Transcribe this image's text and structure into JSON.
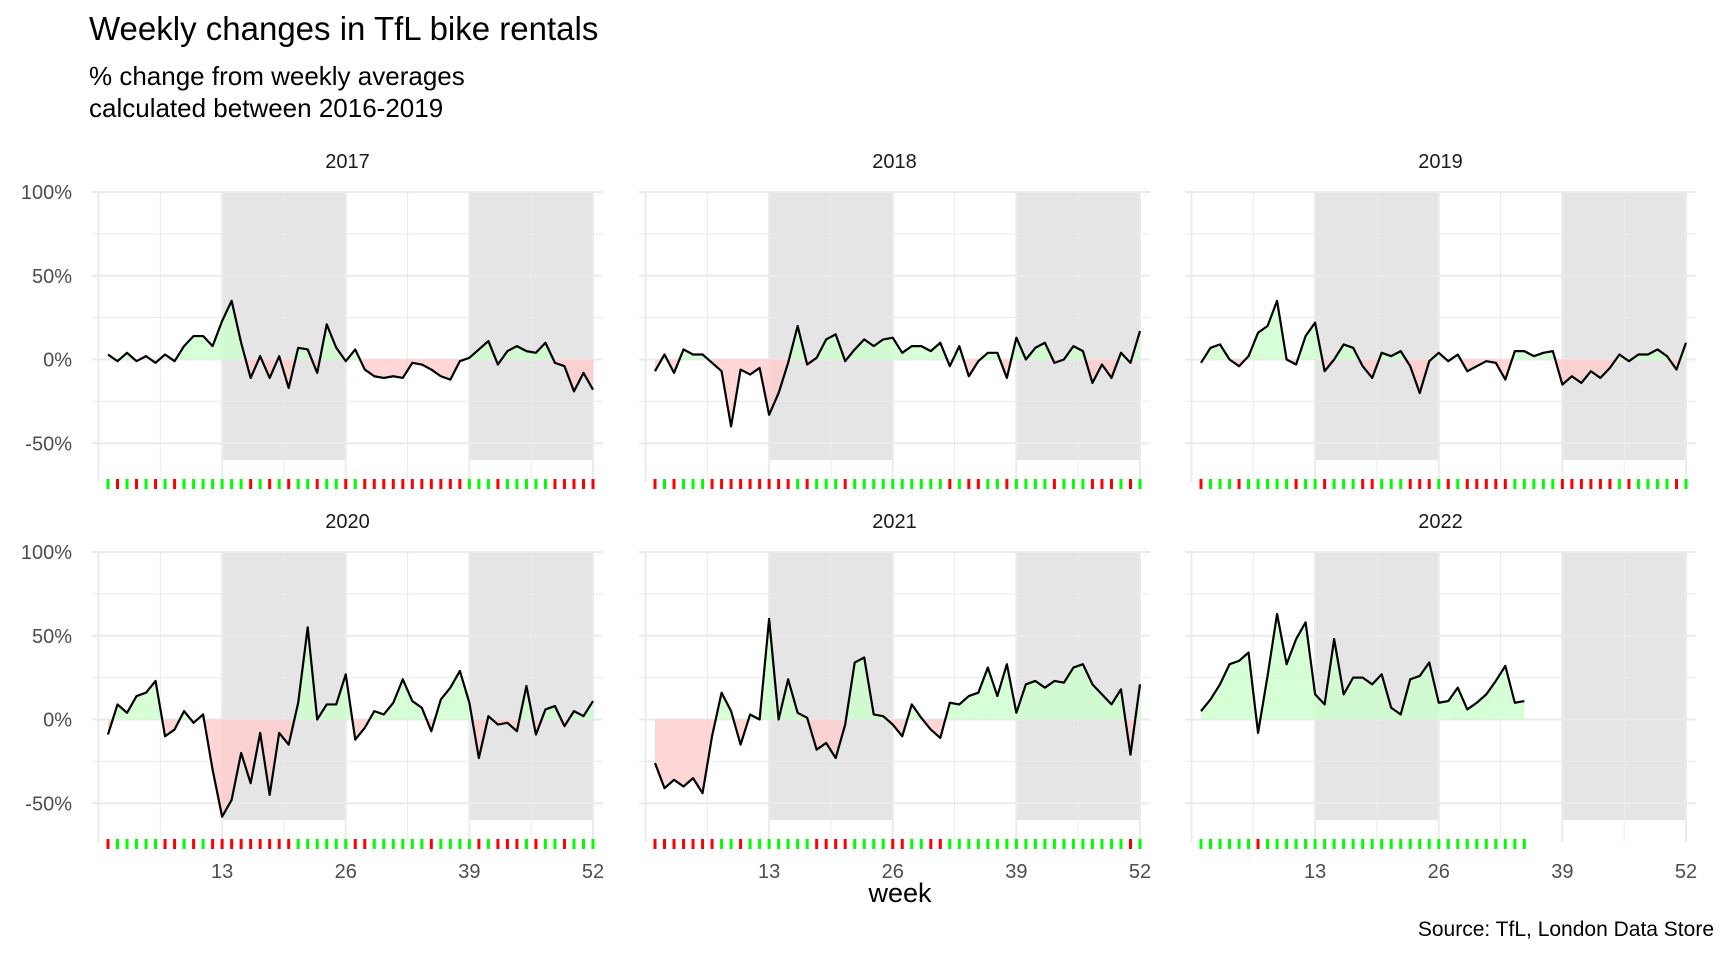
{
  "title": "Weekly changes in TfL bike rentals",
  "subtitle": "% change from weekly averages\ncalculated between 2016-2019",
  "caption": "Source: TfL, London Data Store",
  "colors": {
    "line": "#000000",
    "positive_fill": "#ccffcc",
    "negative_fill": "#ffcccc",
    "positive_tick": "#00ff00",
    "negative_tick": "#ff0000",
    "quarter_shade": "#e5e5e5",
    "grid": "#ebebeb"
  },
  "chart_data": {
    "type": "area",
    "xlabel": "week",
    "ylabel": "",
    "xlim": [
      1,
      52
    ],
    "ylim": [
      -60,
      100
    ],
    "x_ticks": [
      13,
      26,
      39,
      52
    ],
    "x_tick_labels": [
      "13",
      "26",
      "39",
      "52"
    ],
    "y_ticks": [
      -50,
      0,
      50,
      100
    ],
    "y_tick_labels": [
      "-50%",
      "0%",
      "50%",
      "100%"
    ],
    "shaded_week_ranges": [
      [
        13,
        26
      ],
      [
        39,
        52
      ]
    ],
    "grid": true,
    "facets": [
      {
        "name": "2017",
        "values": [
          3,
          -1,
          4,
          -1,
          2,
          -2,
          3,
          -1,
          8,
          14,
          14,
          8,
          23,
          35,
          10,
          -11,
          2,
          -11,
          2,
          -17,
          7,
          6,
          -8,
          21,
          7,
          -1,
          6,
          -6,
          -10,
          -11,
          -10,
          -11,
          -2,
          -3,
          -6,
          -10,
          -12,
          -1,
          1,
          6,
          11,
          -3,
          5,
          8,
          5,
          4,
          10,
          -2,
          -4,
          -19,
          -8,
          -18
        ]
      },
      {
        "name": "2018",
        "values": [
          -7,
          3,
          -8,
          6,
          3,
          3,
          -2,
          -7,
          -40,
          -6,
          -9,
          -5,
          -33,
          -20,
          -2,
          20,
          -3,
          1,
          12,
          15,
          -1,
          6,
          12,
          8,
          12,
          13,
          4,
          8,
          8,
          5,
          10,
          -4,
          8,
          -10,
          -1,
          4,
          4,
          -11,
          13,
          0,
          7,
          10,
          -2,
          0,
          8,
          5,
          -14,
          -3,
          -11,
          4,
          -2,
          17
        ]
      },
      {
        "name": "2019",
        "values": [
          -2,
          7,
          9,
          0,
          -4,
          2,
          16,
          20,
          35,
          0,
          -3,
          14,
          22,
          -7,
          0,
          9,
          7,
          -4,
          -11,
          4,
          2,
          5,
          -4,
          -20,
          -1,
          4,
          -1,
          3,
          -7,
          -4,
          -1,
          -2,
          -12,
          5,
          5,
          2,
          4,
          5,
          -15,
          -10,
          -14,
          -7,
          -11,
          -5,
          3,
          -1,
          3,
          3,
          6,
          2,
          -6,
          10
        ]
      },
      {
        "name": "2020",
        "values": [
          -9,
          9,
          4,
          14,
          16,
          23,
          -10,
          -6,
          5,
          -2,
          3,
          -30,
          -58,
          -48,
          -20,
          -38,
          -8,
          -45,
          -8,
          -15,
          10,
          55,
          0,
          9,
          9,
          27,
          -12,
          -5,
          5,
          3,
          10,
          24,
          11,
          7,
          -7,
          12,
          19,
          29,
          10,
          -23,
          2,
          -3,
          -2,
          -7,
          20,
          -9,
          6,
          8,
          -4,
          5,
          2,
          11
        ]
      },
      {
        "name": "2021",
        "values": [
          -26,
          -41,
          -36,
          -40,
          -35,
          -44,
          -10,
          16,
          5,
          -15,
          3,
          0,
          60,
          0,
          24,
          4,
          1,
          -18,
          -14,
          -23,
          -3,
          34,
          37,
          3,
          2,
          -3,
          -10,
          9,
          1,
          -6,
          -11,
          10,
          9,
          14,
          16,
          31,
          14,
          33,
          4,
          21,
          23,
          19,
          23,
          22,
          31,
          33,
          21,
          15,
          9,
          18,
          -21,
          21
        ]
      },
      {
        "name": "2022",
        "values": [
          5,
          12,
          21,
          33,
          35,
          40,
          -8,
          26,
          63,
          33,
          48,
          58,
          15,
          9,
          48,
          15,
          25,
          25,
          21,
          27,
          7,
          3,
          24,
          26,
          34,
          10,
          11,
          19,
          6,
          10,
          15,
          23,
          32,
          10,
          11
        ]
      }
    ]
  }
}
